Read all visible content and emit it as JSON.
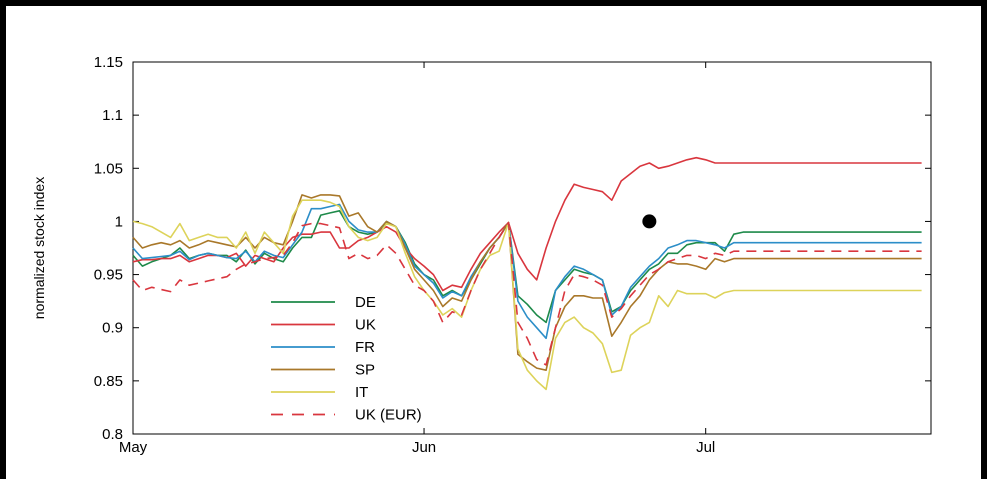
{
  "chart_data": {
    "type": "line",
    "title": "",
    "xlabel": "",
    "ylabel": "normalized stock index",
    "ylim": [
      0.8,
      1.15
    ],
    "yticks": [
      "0.8",
      "0.85",
      "0.9",
      "0.95",
      "1",
      "1.05",
      "1.1",
      "1.15"
    ],
    "x_tick_labels": [
      "May",
      "Jun",
      "Jul"
    ],
    "x_tick_positions": [
      0,
      31,
      61
    ],
    "xlim": [
      0,
      85
    ],
    "grid": false,
    "legend_position": "lower-left",
    "marker": {
      "x": 55,
      "y": 1.0
    },
    "x": [
      0,
      1,
      2,
      3,
      4,
      5,
      6,
      7,
      8,
      9,
      10,
      11,
      12,
      13,
      14,
      15,
      16,
      17,
      18,
      19,
      20,
      21,
      22,
      23,
      24,
      25,
      26,
      27,
      28,
      29,
      30,
      31,
      32,
      33,
      34,
      35,
      36,
      37,
      38,
      39,
      40,
      41,
      42,
      43,
      44,
      45,
      46,
      47,
      48,
      49,
      50,
      51,
      52,
      53,
      54,
      55,
      56,
      57,
      58,
      59,
      60,
      61,
      62,
      63,
      64,
      65,
      66,
      67,
      68,
      69,
      70,
      71,
      72,
      73,
      74,
      75,
      76,
      77,
      78,
      79,
      80,
      81,
      82,
      83,
      84
    ],
    "series": [
      {
        "name": "DE",
        "color": "#1e8a4a",
        "dash": "solid",
        "values": [
          0.968,
          0.958,
          0.962,
          0.965,
          0.968,
          0.975,
          0.965,
          0.968,
          0.97,
          0.968,
          0.968,
          0.962,
          0.973,
          0.96,
          0.97,
          0.965,
          0.962,
          0.975,
          0.985,
          0.985,
          1.006,
          1.008,
          1.01,
          0.995,
          0.99,
          0.988,
          0.99,
          0.999,
          0.995,
          0.98,
          0.96,
          0.95,
          0.945,
          0.93,
          0.935,
          0.93,
          0.945,
          0.96,
          0.975,
          0.985,
          0.999,
          0.93,
          0.922,
          0.912,
          0.905,
          0.935,
          0.945,
          0.955,
          0.952,
          0.95,
          0.945,
          0.915,
          0.92,
          0.935,
          0.945,
          0.955,
          0.96,
          0.97,
          0.97,
          0.978,
          0.98,
          0.98,
          0.98,
          0.972,
          0.988,
          0.99,
          0.99,
          0.99,
          0.99,
          0.99,
          0.99,
          0.99,
          0.99,
          0.99,
          0.99,
          0.99,
          0.99,
          0.99,
          0.99,
          0.99,
          0.99,
          0.99,
          0.99,
          0.99,
          0.99
        ]
      },
      {
        "name": "UK",
        "color": "#d9363e",
        "dash": "solid",
        "values": [
          0.962,
          0.964,
          0.964,
          0.965,
          0.965,
          0.968,
          0.962,
          0.965,
          0.968,
          0.968,
          0.966,
          0.97,
          0.958,
          0.968,
          0.965,
          0.962,
          0.975,
          0.985,
          0.988,
          0.988,
          0.99,
          0.99,
          0.975,
          0.975,
          0.982,
          0.985,
          0.99,
          0.995,
          0.99,
          0.975,
          0.965,
          0.958,
          0.95,
          0.935,
          0.94,
          0.938,
          0.955,
          0.97,
          0.98,
          0.99,
          0.999,
          0.97,
          0.955,
          0.945,
          0.975,
          1.0,
          1.02,
          1.035,
          1.032,
          1.03,
          1.028,
          1.02,
          1.038,
          1.045,
          1.052,
          1.055,
          1.05,
          1.052,
          1.055,
          1.058,
          1.06,
          1.058,
          1.055,
          1.055,
          1.055,
          1.055,
          1.055,
          1.055,
          1.055,
          1.055,
          1.055,
          1.055,
          1.055,
          1.055,
          1.055,
          1.055,
          1.055,
          1.055,
          1.055,
          1.055,
          1.055,
          1.055,
          1.055,
          1.055,
          1.055
        ]
      },
      {
        "name": "FR",
        "color": "#2c8ec8",
        "dash": "solid",
        "values": [
          0.975,
          0.965,
          0.966,
          0.967,
          0.968,
          0.972,
          0.964,
          0.968,
          0.97,
          0.968,
          0.966,
          0.965,
          0.972,
          0.962,
          0.972,
          0.968,
          0.966,
          0.978,
          0.99,
          1.012,
          1.012,
          1.014,
          1.016,
          1.0,
          0.992,
          0.99,
          0.99,
          1.0,
          0.995,
          0.978,
          0.958,
          0.95,
          0.942,
          0.928,
          0.934,
          0.93,
          0.948,
          0.962,
          0.975,
          0.985,
          0.999,
          0.925,
          0.91,
          0.9,
          0.89,
          0.935,
          0.948,
          0.958,
          0.955,
          0.95,
          0.945,
          0.912,
          0.92,
          0.938,
          0.948,
          0.958,
          0.965,
          0.975,
          0.978,
          0.982,
          0.982,
          0.98,
          0.978,
          0.975,
          0.98,
          0.98,
          0.98,
          0.98,
          0.98,
          0.98,
          0.98,
          0.98,
          0.98,
          0.98,
          0.98,
          0.98,
          0.98,
          0.98,
          0.98,
          0.98,
          0.98,
          0.98,
          0.98,
          0.98,
          0.98
        ]
      },
      {
        "name": "SP",
        "color": "#a9782a",
        "dash": "solid",
        "values": [
          0.985,
          0.975,
          0.978,
          0.98,
          0.978,
          0.982,
          0.975,
          0.978,
          0.982,
          0.98,
          0.978,
          0.976,
          0.985,
          0.975,
          0.985,
          0.98,
          0.978,
          1.0,
          1.025,
          1.022,
          1.025,
          1.025,
          1.024,
          1.005,
          1.008,
          0.995,
          0.99,
          1.0,
          0.995,
          0.975,
          0.955,
          0.945,
          0.935,
          0.92,
          0.928,
          0.925,
          0.945,
          0.962,
          0.975,
          0.985,
          0.999,
          0.875,
          0.868,
          0.862,
          0.86,
          0.9,
          0.92,
          0.93,
          0.93,
          0.928,
          0.928,
          0.892,
          0.905,
          0.92,
          0.93,
          0.945,
          0.955,
          0.962,
          0.96,
          0.96,
          0.958,
          0.955,
          0.965,
          0.962,
          0.965,
          0.965,
          0.965,
          0.965,
          0.965,
          0.965,
          0.965,
          0.965,
          0.965,
          0.965,
          0.965,
          0.965,
          0.965,
          0.965,
          0.965,
          0.965,
          0.965,
          0.965,
          0.965,
          0.965,
          0.965
        ]
      },
      {
        "name": "IT",
        "color": "#ddd35a",
        "dash": "solid",
        "values": [
          1.0,
          0.998,
          0.995,
          0.99,
          0.985,
          0.998,
          0.982,
          0.985,
          0.988,
          0.985,
          0.985,
          0.975,
          0.99,
          0.97,
          0.99,
          0.98,
          0.97,
          1.005,
          1.02,
          1.02,
          1.02,
          1.018,
          1.014,
          0.995,
          0.985,
          0.982,
          0.985,
          0.998,
          0.995,
          0.97,
          0.948,
          0.935,
          0.925,
          0.912,
          0.918,
          0.91,
          0.935,
          0.955,
          0.968,
          0.972,
          0.999,
          0.88,
          0.86,
          0.85,
          0.842,
          0.89,
          0.905,
          0.91,
          0.9,
          0.895,
          0.885,
          0.858,
          0.86,
          0.893,
          0.9,
          0.905,
          0.93,
          0.92,
          0.935,
          0.932,
          0.932,
          0.932,
          0.928,
          0.933,
          0.935,
          0.935,
          0.935,
          0.935,
          0.935,
          0.935,
          0.935,
          0.935,
          0.935,
          0.935,
          0.935,
          0.935,
          0.935,
          0.935,
          0.935,
          0.935,
          0.935,
          0.935,
          0.935,
          0.935,
          0.935
        ]
      },
      {
        "name": "UK (EUR)",
        "color": "#d9363e",
        "dash": "dashed",
        "values": [
          0.945,
          0.935,
          0.938,
          0.936,
          0.934,
          0.945,
          0.94,
          0.942,
          0.944,
          0.946,
          0.948,
          0.955,
          0.96,
          0.962,
          0.965,
          0.966,
          0.968,
          0.98,
          0.996,
          0.998,
          0.998,
          0.996,
          0.994,
          0.965,
          0.97,
          0.965,
          0.968,
          0.978,
          0.97,
          0.955,
          0.94,
          0.935,
          0.925,
          0.905,
          0.915,
          0.912,
          0.935,
          0.955,
          0.97,
          0.985,
          0.999,
          0.905,
          0.89,
          0.87,
          0.865,
          0.9,
          0.935,
          0.95,
          0.948,
          0.945,
          0.94,
          0.91,
          0.918,
          0.93,
          0.94,
          0.95,
          0.955,
          0.962,
          0.965,
          0.968,
          0.968,
          0.965,
          0.97,
          0.968,
          0.972,
          0.972,
          0.972,
          0.972,
          0.972,
          0.972,
          0.972,
          0.972,
          0.972,
          0.972,
          0.972,
          0.972,
          0.972,
          0.972,
          0.972,
          0.972,
          0.972,
          0.972,
          0.972,
          0.972,
          0.972
        ]
      }
    ]
  }
}
